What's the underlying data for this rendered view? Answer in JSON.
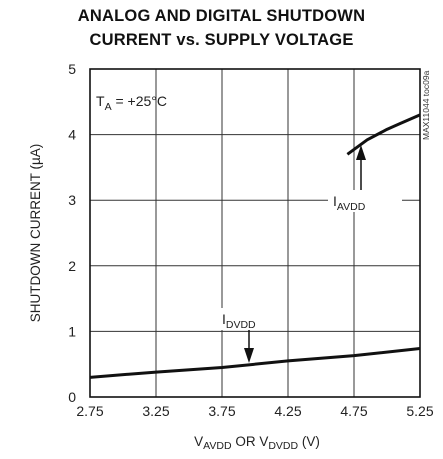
{
  "chart_data": {
    "type": "line",
    "title_line1": "ANALOG AND DIGITAL SHUTDOWN",
    "title_line2": "CURRENT vs. SUPPLY VOLTAGE",
    "ylabel": "SHUTDOWN CURRENT (µA)",
    "xlabel": {
      "part1_main": "V",
      "part1_sub": "AVDD",
      "part2_main": " OR V",
      "part2_sub": "DVDD",
      "part3": " (V)"
    },
    "xlim": [
      2.75,
      5.25
    ],
    "ylim": [
      0,
      5
    ],
    "x_ticks": [
      "2.75",
      "3.25",
      "3.75",
      "4.25",
      "4.75",
      "5.25"
    ],
    "y_ticks": [
      "0",
      "1",
      "2",
      "3",
      "4",
      "5"
    ],
    "grid": true,
    "temperature": {
      "main": "T",
      "sub": "A",
      "rest": " = +25°C"
    },
    "watermark": "MAX11044 toc09a",
    "series": [
      {
        "name_main": "I",
        "name_sub": "DVDD",
        "x": [
          2.75,
          3.25,
          3.75,
          4.25,
          4.75,
          5.25
        ],
        "y": [
          0.3,
          0.38,
          0.45,
          0.55,
          0.63,
          0.74
        ]
      },
      {
        "name_main": "I",
        "name_sub": "AVDD",
        "x": [
          4.7,
          4.85,
          5.0,
          5.1,
          5.25
        ],
        "y": [
          3.7,
          3.92,
          4.08,
          4.17,
          4.3
        ]
      }
    ]
  }
}
